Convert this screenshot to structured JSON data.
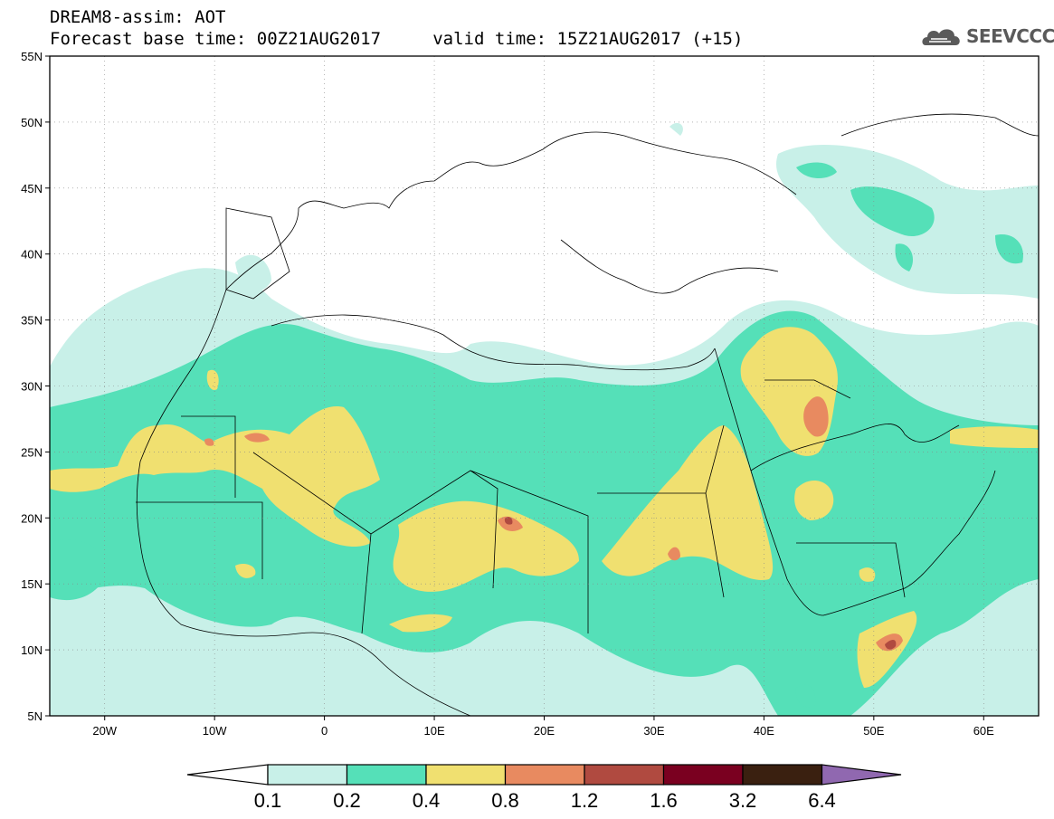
{
  "header": {
    "title_line1": "DREAM8-assim: AOT",
    "title_line2": "Forecast base time: 00Z21AUG2017     valid time: 15Z21AUG2017 (+15)",
    "logo_text": "SEEVCCC",
    "logo_icon": "cloud-icon"
  },
  "map": {
    "lon_range": [
      -25,
      65
    ],
    "lat_range": [
      5,
      55
    ],
    "lat_ticks": [
      "55N",
      "50N",
      "45N",
      "40N",
      "35N",
      "30N",
      "25N",
      "20N",
      "15N",
      "10N",
      "5N"
    ],
    "lon_ticks": [
      "20W",
      "10W",
      "0",
      "10E",
      "20E",
      "30E",
      "40E",
      "50E",
      "60E"
    ],
    "grid": "dotted"
  },
  "colorbar": {
    "labels": [
      "0.1",
      "0.2",
      "0.4",
      "0.8",
      "1.2",
      "1.6",
      "3.2",
      "6.4"
    ],
    "colors": {
      "below": "#ffffff",
      "c1": "#c8f0e8",
      "c2": "#55e0b8",
      "c3": "#f0e070",
      "c4": "#e88a60",
      "c5": "#b04a40",
      "c6": "#7a0020",
      "c7": "#3a2010",
      "above": "#9068b0"
    }
  }
}
